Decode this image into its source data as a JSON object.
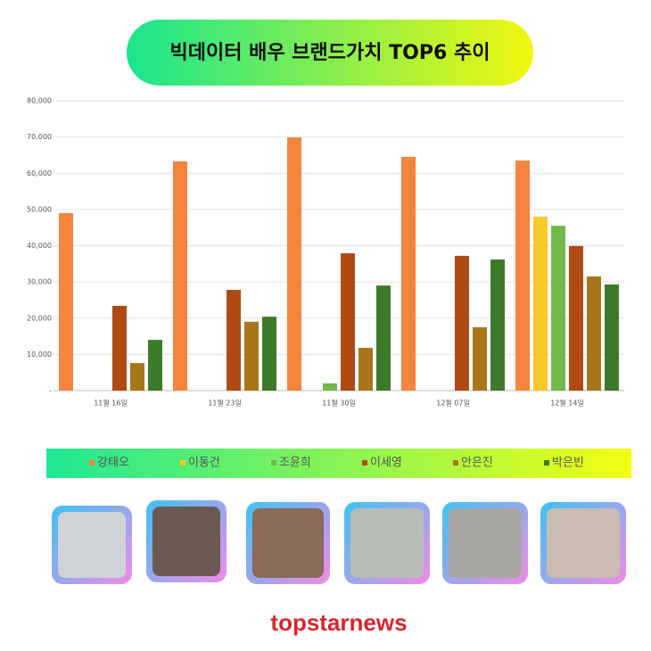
{
  "chart_data": {
    "type": "bar",
    "title": "빅데이터 배우 브랜드가치 TOP6 추이",
    "categories": [
      "11월 16일",
      "11월 23일",
      "11월 30일",
      "12월 07일",
      "12월 14일"
    ],
    "series": [
      {
        "name": "강태오",
        "color": "#f5843c",
        "values": [
          49000,
          63300,
          69900,
          64500,
          63500
        ]
      },
      {
        "name": "이동건",
        "color": "#fdc82a",
        "values": [
          null,
          null,
          null,
          null,
          48000
        ]
      },
      {
        "name": "조윤희",
        "color": "#72b84a",
        "values": [
          null,
          null,
          2000,
          null,
          45500
        ]
      },
      {
        "name": "이세영",
        "color": "#b04a14",
        "values": [
          23400,
          27800,
          37900,
          37200,
          39900
        ]
      },
      {
        "name": "안은진",
        "color": "#a8761a",
        "values": [
          7600,
          19000,
          11800,
          17500,
          31500
        ]
      },
      {
        "name": "박은빈",
        "color": "#3e7a2c",
        "values": [
          14000,
          20400,
          29000,
          36200,
          29300
        ]
      }
    ],
    "ylim": [
      0,
      80000
    ],
    "yticks": [
      {
        "value": 0,
        "label": "-"
      },
      {
        "value": 10000,
        "label": "10,000"
      },
      {
        "value": 20000,
        "label": "20,000"
      },
      {
        "value": 30000,
        "label": "30,000"
      },
      {
        "value": 40000,
        "label": "40,000"
      },
      {
        "value": 50000,
        "label": "50,000"
      },
      {
        "value": 60000,
        "label": "60,000"
      },
      {
        "value": 70000,
        "label": "70,000"
      },
      {
        "value": 80000,
        "label": "80,000"
      }
    ],
    "grid": true
  },
  "logo": "topstarnews"
}
